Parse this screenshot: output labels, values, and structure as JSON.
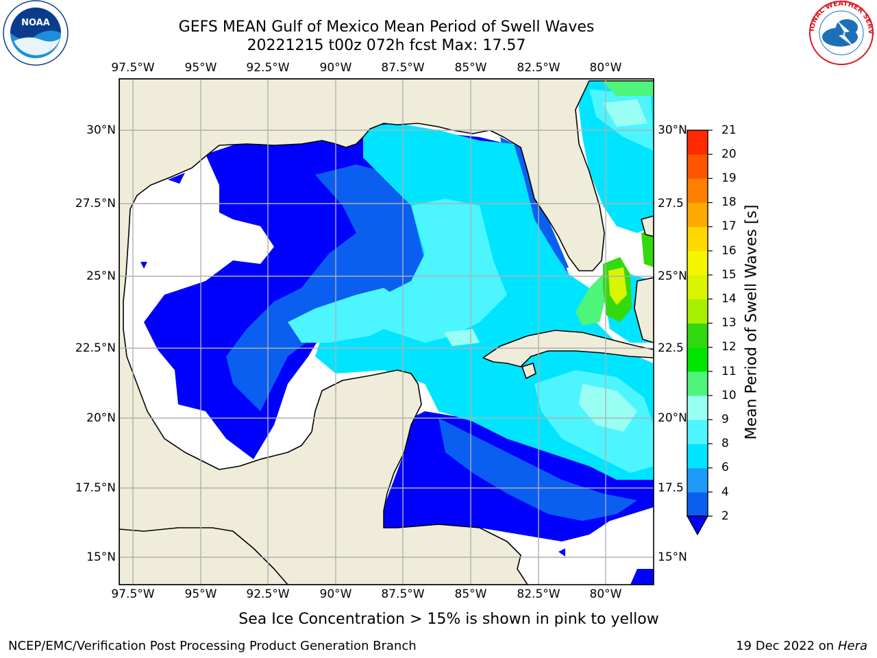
{
  "title": {
    "line1": "GEFS MEAN Gulf of Mexico Mean Period of Swell Waves",
    "line2": "20221215 t00z 072h fcst   Max: 17.57"
  },
  "logos": {
    "noaa": {
      "label": "NOAA",
      "colors": [
        "#0b3c8c",
        "#1d8fd8"
      ]
    },
    "nws": {
      "label": "NATIONAL WEATHER SERVICE",
      "colors": [
        "#d71920",
        "#1d6fb8"
      ]
    }
  },
  "map": {
    "lon_labels": [
      "97.5°W",
      "95°W",
      "92.5°W",
      "90°W",
      "87.5°W",
      "85°W",
      "82.5°W",
      "80°W"
    ],
    "lat_labels_left": [
      "30°N",
      "27.5°N",
      "25°N",
      "22.5°N",
      "20°N",
      "17.5°N",
      "15°N"
    ],
    "lat_labels_right": [
      "30°N",
      "27.5",
      "25°N",
      "22.5",
      "20°N",
      "17.5",
      "15°N"
    ],
    "land_color": "#efedda",
    "ocean_nodata_color": "#ffffff",
    "grid_color": "#b0b0b0"
  },
  "colorbar": {
    "title": "Mean Period of Swell Waves [s]",
    "tick_labels": [
      "2",
      "4",
      "6",
      "8",
      "9",
      "10",
      "11",
      "12",
      "13",
      "14",
      "15",
      "16",
      "17",
      "18",
      "19",
      "20",
      "21"
    ],
    "colors": [
      "#0a5ff0",
      "#1d9bf6",
      "#00e5ff",
      "#4df5ff",
      "#99fff4",
      "#4df57a",
      "#00e600",
      "#33d90f",
      "#a6f000",
      "#d9f500",
      "#f5f500",
      "#ffd900",
      "#ffaa00",
      "#ff8000",
      "#ff5500",
      "#ff2a00",
      "#ff0000"
    ],
    "under_color": "#0000ff"
  },
  "note": "Sea Ice Concentration > 15% is shown in pink to yellow",
  "footer": {
    "left": "NCEP/EMC/Verification Post Processing Product Generation Branch",
    "right_date": "19 Dec 2022 on",
    "right_host": "Hera"
  }
}
